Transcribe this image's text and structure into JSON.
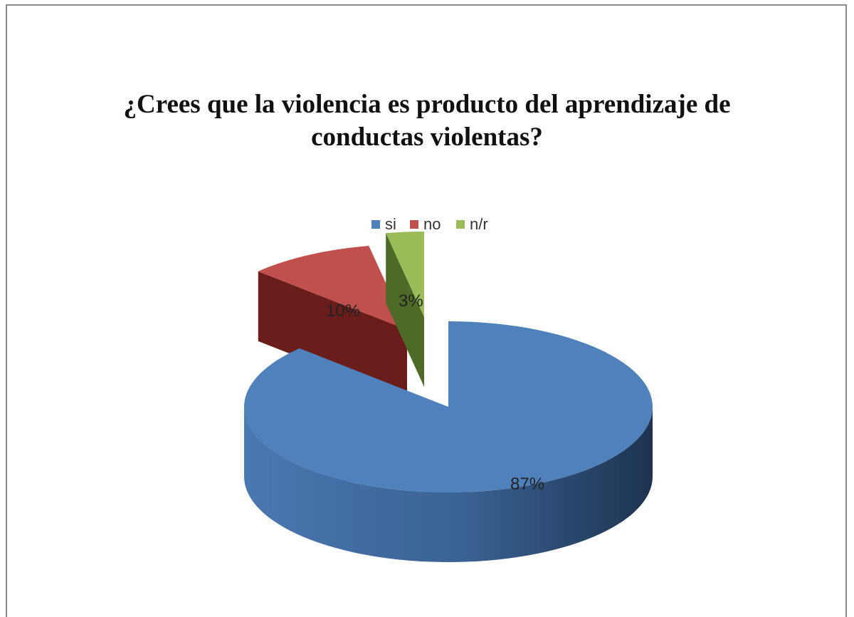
{
  "chart_data": {
    "type": "pie",
    "title": [
      "¿Crees que la violencia es producto del aprendizaje de",
      "conductas violentas?"
    ],
    "labels": [
      "si",
      "no",
      "n/r"
    ],
    "values": [
      87,
      10,
      3
    ],
    "data_labels": [
      "87%",
      "10%",
      "3%"
    ],
    "colors": [
      "#4F81BD",
      "#C0504D",
      "#9BBB59"
    ],
    "legend_position": "top",
    "exploded": [
      "no",
      "n/r"
    ],
    "style": "3d"
  }
}
